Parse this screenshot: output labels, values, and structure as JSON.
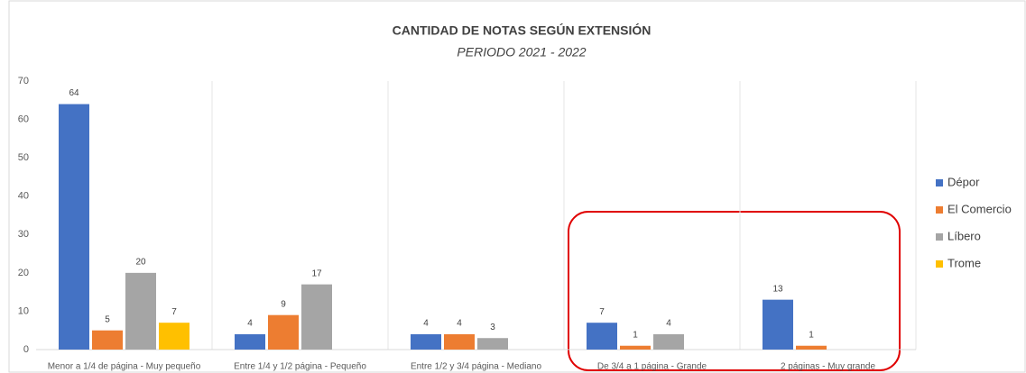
{
  "chart_data": {
    "type": "bar",
    "title": "CANTIDAD DE NOTAS SEGÚN EXTENSIÓN",
    "subtitle": "PERIODO 2021 - 2022",
    "categories": [
      "Menor a 1/4 de página - Muy pequeño",
      "Entre 1/4 y 1/2 página - Pequeño",
      "Entre 1/2 y 3/4 página - Mediano",
      "De 3/4 a 1 página - Grande",
      "2 páginas - Muy grande"
    ],
    "series": [
      {
        "name": "Dépor",
        "color": "#4472c4",
        "values": [
          64,
          4,
          4,
          7,
          13
        ]
      },
      {
        "name": "El Comercio",
        "color": "#ed7d31",
        "values": [
          5,
          9,
          4,
          1,
          1
        ]
      },
      {
        "name": "Líbero",
        "color": "#a5a5a5",
        "values": [
          20,
          17,
          3,
          4,
          null
        ]
      },
      {
        "name": "Trome",
        "color": "#ffc000",
        "values": [
          7,
          null,
          null,
          null,
          null
        ]
      }
    ],
    "ylim": [
      0,
      70
    ],
    "yticks": [
      0,
      10,
      20,
      30,
      40,
      50,
      60,
      70
    ],
    "grid": false,
    "legend": "right"
  }
}
